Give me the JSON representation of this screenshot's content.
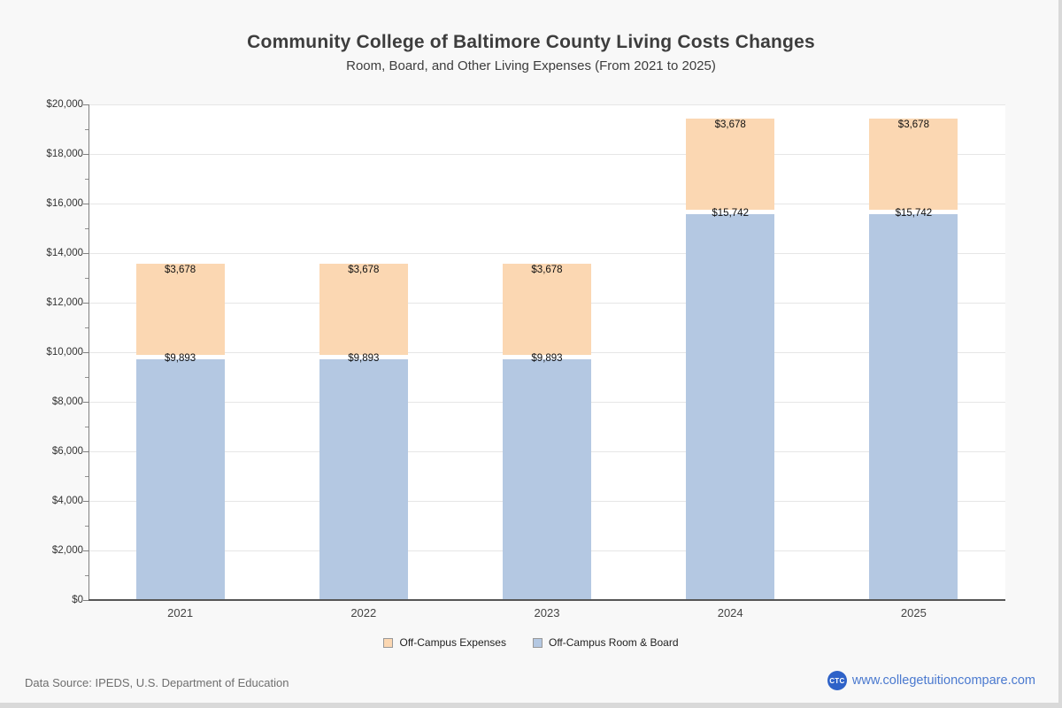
{
  "title": "Community College of Baltimore County Living Costs Changes",
  "subtitle": "Room, Board, and Other Living Expenses (From 2021 to 2025)",
  "chart_data": {
    "type": "bar",
    "stacked": true,
    "title": "Community College of Baltimore County Living Costs Changes",
    "subtitle": "Room, Board, and Other Living Expenses (From 2021 to 2025)",
    "categories": [
      "2021",
      "2022",
      "2023",
      "2024",
      "2025"
    ],
    "series": [
      {
        "name": "Off-Campus Room & Board",
        "color": "#b4c8e2",
        "values": [
          9893,
          9893,
          9893,
          15742,
          15742
        ]
      },
      {
        "name": "Off-Campus Expenses",
        "color": "#fbd7b2",
        "values": [
          3678,
          3678,
          3678,
          3678,
          3678
        ]
      }
    ],
    "stack_totals": [
      13571,
      13571,
      13571,
      19420,
      19420
    ],
    "xlabel": "",
    "ylabel": "",
    "ylim": [
      0,
      20000
    ],
    "ytick_step": 2000,
    "ytick_minor_step": 1000,
    "tick_prefix": "$",
    "grid": true,
    "legend_position": "bottom"
  },
  "legend": {
    "items": [
      {
        "label": "Off-Campus Expenses",
        "color": "#fbd7b2"
      },
      {
        "label": "Off-Campus Room & Board",
        "color": "#b4c8e2"
      }
    ]
  },
  "footer": {
    "source": "Data Source: IPEDS, U.S. Department of Education",
    "logo_text": "CTC",
    "site": "www.collegetuitioncompare.com"
  },
  "colors": {
    "page_background": "#f8f8f8",
    "plot_background": "#ffffff",
    "gridline": "#e6e6e6",
    "axis": "#565656",
    "room_board_bar": "#b4c8e2",
    "expenses_bar": "#fbd7b2",
    "link_blue": "#4a79cf",
    "logo_blue": "#2e62c8"
  }
}
